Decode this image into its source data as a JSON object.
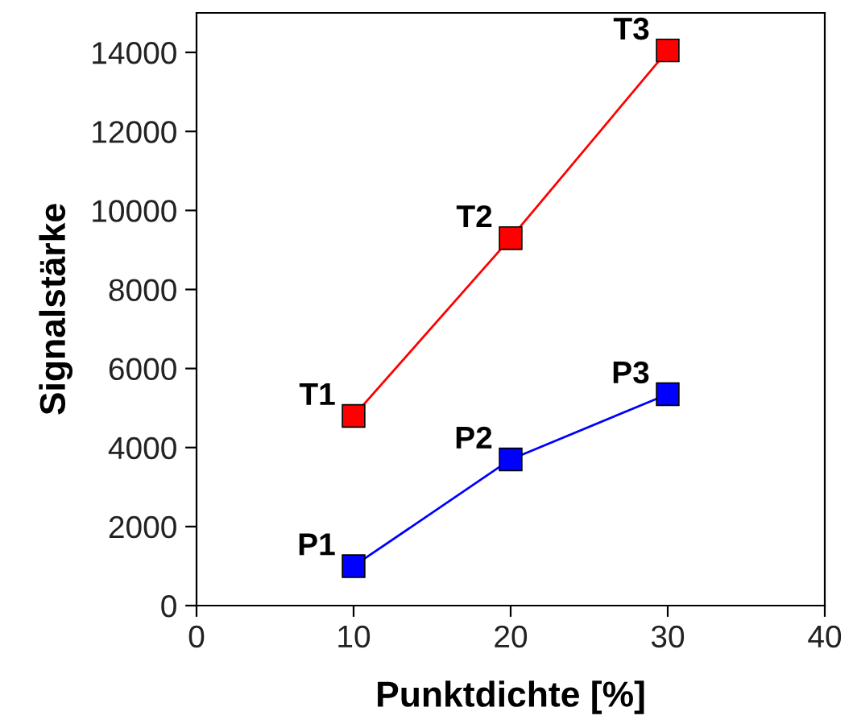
{
  "chart_data": {
    "type": "line",
    "xlabel": "Punktdichte [%]",
    "ylabel": "Signalstärke",
    "x": [
      10,
      20,
      30
    ],
    "series": [
      {
        "color": "#ff0000",
        "values": [
          4800,
          9300,
          14050
        ]
      },
      {
        "color": "#0000ff",
        "values": [
          1000,
          3700,
          5350
        ]
      }
    ],
    "xlim": [
      0,
      40
    ],
    "xticks": [
      0,
      10,
      20,
      30,
      40
    ],
    "ylim": [
      0,
      15000
    ],
    "yticks": [
      0,
      2000,
      4000,
      6000,
      8000,
      10000,
      12000,
      14000
    ],
    "marker": "square",
    "line_style": "solid",
    "grid": false,
    "legend": false,
    "annotations": [
      {
        "text": "T1",
        "x": 10,
        "y": 4800
      },
      {
        "text": "T2",
        "x": 20,
        "y": 9300
      },
      {
        "text": "T3",
        "x": 30,
        "y": 14050
      },
      {
        "text": "P1",
        "x": 10,
        "y": 1000
      },
      {
        "text": "P2",
        "x": 20,
        "y": 3700
      },
      {
        "text": "P3",
        "x": 30,
        "y": 5350
      }
    ]
  }
}
